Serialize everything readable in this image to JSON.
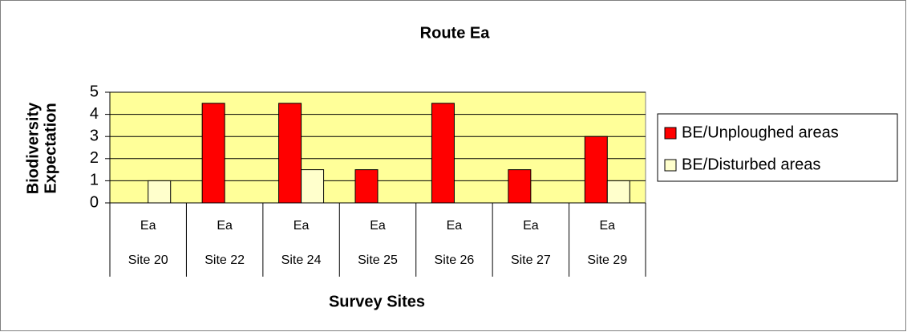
{
  "chart_data": {
    "type": "bar",
    "title": "Route Ea",
    "y_label": [
      "Biodiversity",
      "Expectation"
    ],
    "x_label": "Survey Sites",
    "categories": [
      [
        "Ea",
        "Site 20"
      ],
      [
        "Ea",
        "Site 22"
      ],
      [
        "Ea",
        "Site 24"
      ],
      [
        "Ea",
        "Site 25"
      ],
      [
        "Ea",
        "Site 26"
      ],
      [
        "Ea",
        "Site 27"
      ],
      [
        "Ea",
        "Site 29"
      ]
    ],
    "series": [
      {
        "name": "BE/Unploughed areas",
        "color": "#ff0000",
        "values": [
          0,
          4.5,
          4.5,
          1.5,
          4.5,
          1.5,
          3
        ]
      },
      {
        "name": "BE/Disturbed areas",
        "color": "#ffffcc",
        "values": [
          1,
          0,
          1.5,
          0,
          0,
          0,
          1
        ]
      }
    ],
    "ylim": [
      0,
      5
    ],
    "yticks": [
      0,
      1,
      2,
      3,
      4,
      5
    ],
    "grid": true,
    "plot_background": "#ffff99",
    "legend": "right"
  }
}
